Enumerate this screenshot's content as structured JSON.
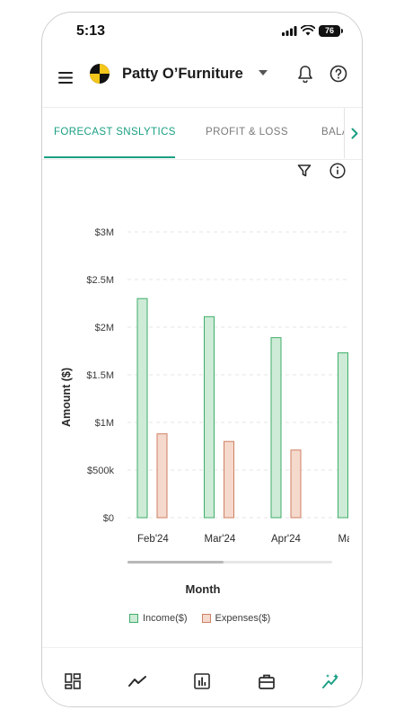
{
  "status_bar": {
    "time": "5:13",
    "battery": "76"
  },
  "header": {
    "company_name": "Patty O’Furniture"
  },
  "tabs": [
    {
      "label": "FORECAST SNSLYTICS",
      "active": true
    },
    {
      "label": "PROFIT & LOSS",
      "active": false
    },
    {
      "label": "BALA",
      "active": false
    }
  ],
  "colors": {
    "accent": "#1a9f82",
    "income_fill": "#cdebd6",
    "income_stroke": "#3fae6a",
    "expense_fill": "#f5d9cd",
    "expense_stroke": "#cf8062"
  },
  "icons": {
    "menu": "hamburger-icon",
    "logo": "crash-test-logo",
    "caret": "caret-down-icon",
    "bell": "bell-icon",
    "help": "help-circle-icon",
    "next": "chevron-right-icon",
    "filter": "filter-icon",
    "info": "info-circle-icon",
    "nav": [
      "dashboard-icon",
      "trend-icon",
      "report-icon",
      "briefcase-icon",
      "sparkle-chart-icon"
    ]
  },
  "chart_data": {
    "type": "bar",
    "categories": [
      "Feb'24",
      "Mar'24",
      "Apr'24",
      "Ma"
    ],
    "series": [
      {
        "name": "Income($)",
        "values": [
          2300000,
          2110000,
          1890000,
          1730000
        ]
      },
      {
        "name": "Expenses($)",
        "values": [
          880000,
          800000,
          710000,
          null
        ]
      }
    ],
    "y_ticks": [
      "$0",
      "$500k",
      "$1M",
      "$1.5M",
      "$2M",
      "$2.5M",
      "$3M"
    ],
    "ylim": [
      0,
      3000000
    ],
    "ylabel": "Amount ($)",
    "xlabel": "Month",
    "grid": "dashed horizontal",
    "legend": "bottom",
    "scroll_position": 0.47
  },
  "legend": {
    "income": "Income($)",
    "expenses": "Expenses($)"
  }
}
